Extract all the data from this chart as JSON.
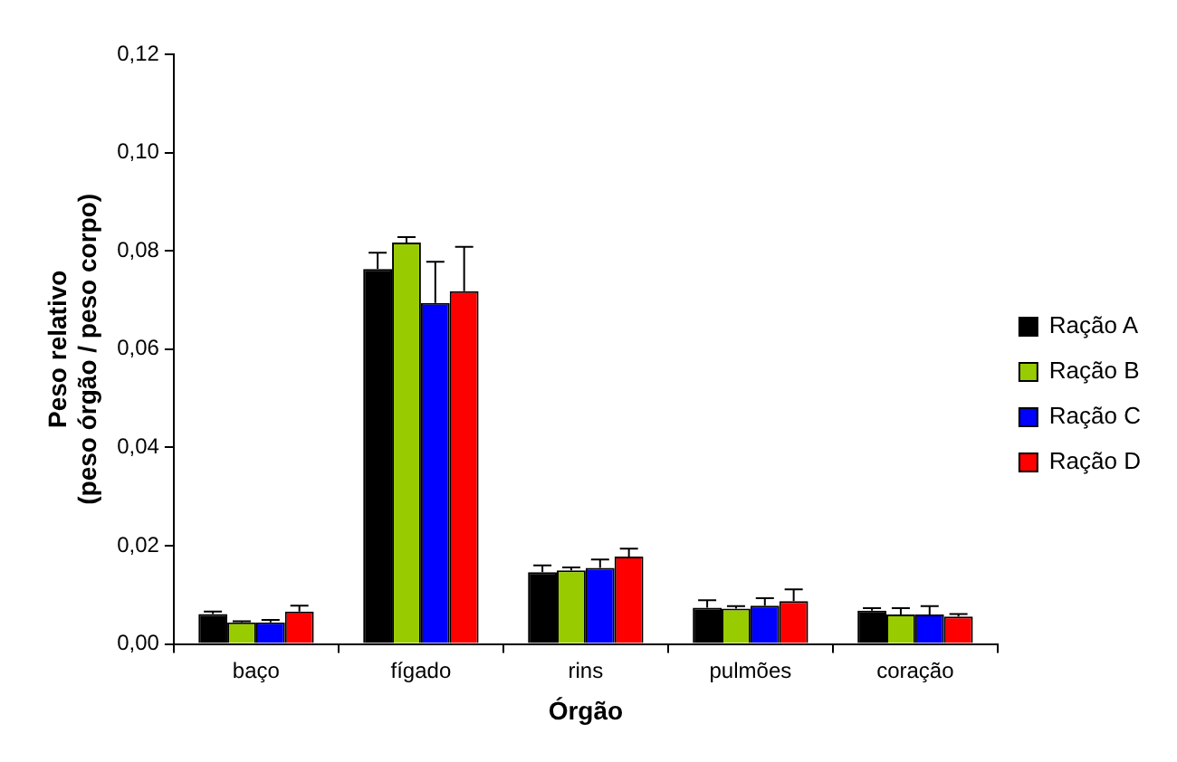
{
  "chart_data": {
    "type": "bar",
    "xlabel": "Órgão",
    "ylabel": "Peso relativo\n(peso órgão / peso corpo)",
    "categories": [
      "baço",
      "fígado",
      "rins",
      "pulmões",
      "coração"
    ],
    "series": [
      {
        "name": "Ração A",
        "color": "#000000",
        "values": [
          0.0061,
          0.0763,
          0.0146,
          0.0074,
          0.0068
        ],
        "errors": [
          [
            0.0061,
            0.0066
          ],
          [
            0.0763,
            0.0796
          ],
          [
            0.0146,
            0.016
          ],
          [
            0.0074,
            0.0089
          ],
          [
            0.0068,
            0.0073
          ]
        ]
      },
      {
        "name": "Ração B",
        "color": "#99cc00",
        "values": [
          0.0044,
          0.0817,
          0.015,
          0.0072,
          0.006
        ],
        "errors": [
          [
            0.0044,
            0.0046
          ],
          [
            0.0817,
            0.0828
          ],
          [
            0.015,
            0.0156
          ],
          [
            0.0072,
            0.0077
          ],
          [
            0.006,
            0.0073
          ]
        ]
      },
      {
        "name": "Ração C",
        "color": "#0000ff",
        "values": [
          0.0044,
          0.0694,
          0.0155,
          0.0078,
          0.006
        ],
        "errors": [
          [
            0.0044,
            0.0049
          ],
          [
            0.0694,
            0.0778
          ],
          [
            0.0155,
            0.0172
          ],
          [
            0.0078,
            0.0093
          ],
          [
            0.006,
            0.0077
          ]
        ]
      },
      {
        "name": "Ração D",
        "color": "#ff0000",
        "values": [
          0.0066,
          0.0718,
          0.0178,
          0.0087,
          0.0056
        ],
        "errors": [
          [
            0.0066,
            0.0078
          ],
          [
            0.0718,
            0.0808
          ],
          [
            0.0178,
            0.0194
          ],
          [
            0.0087,
            0.0111
          ],
          [
            0.0056,
            0.0061
          ]
        ]
      }
    ],
    "ylim": [
      0,
      0.12
    ],
    "yticks": [
      {
        "value": 0,
        "label": "0,00"
      },
      {
        "value": 0.02,
        "label": "0,02"
      },
      {
        "value": 0.04,
        "label": "0,04"
      },
      {
        "value": 0.06,
        "label": "0,06"
      },
      {
        "value": 0.08,
        "label": "0,08"
      },
      {
        "value": 0.1,
        "label": "0,10"
      },
      {
        "value": 0.12,
        "label": "0,12"
      }
    ],
    "grid": false,
    "legend": "right"
  }
}
